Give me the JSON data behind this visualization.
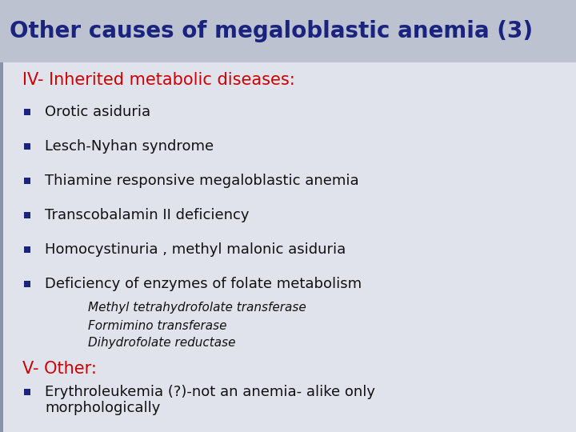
{
  "title": "Other causes of megaloblastic anemia (3)",
  "title_color": "#1a237e",
  "title_fontsize": 20,
  "section1_label": "IV- Inherited metabolic diseases:",
  "section1_color": "#cc0000",
  "section1_fontsize": 15,
  "bullet_color": "#1a237e",
  "bullet_text_color": "#111111",
  "bullet_fontsize": 13,
  "bullets": [
    "Orotic asiduria",
    "Lesch-Nyhan syndrome",
    "Thiamine responsive megaloblastic anemia",
    "Transcobalamin II deficiency",
    "Homocystinuria , methyl malonic asiduria",
    "Deficiency of enzymes of folate metabolism"
  ],
  "sub_bullets": [
    "Methyl tetrahydrofolate transferase",
    "Formimino transferase",
    "Dihydrofolate reductase"
  ],
  "sub_bullet_fontsize": 11,
  "sub_bullet_color": "#111111",
  "section2_label": "V- Other:",
  "section2_color": "#cc0000",
  "section2_fontsize": 15,
  "bullet2_line1": "Erythroleukemia (?)-not an anemia- alike only",
  "bullet2_line2": "morphologically",
  "bullet2_fontsize": 13,
  "slide_bg_color": "#d8dce6",
  "title_bg_color": "#bcc2d0",
  "content_bg_color": "#e0e3ec",
  "left_stripe_color": "#8892a8"
}
